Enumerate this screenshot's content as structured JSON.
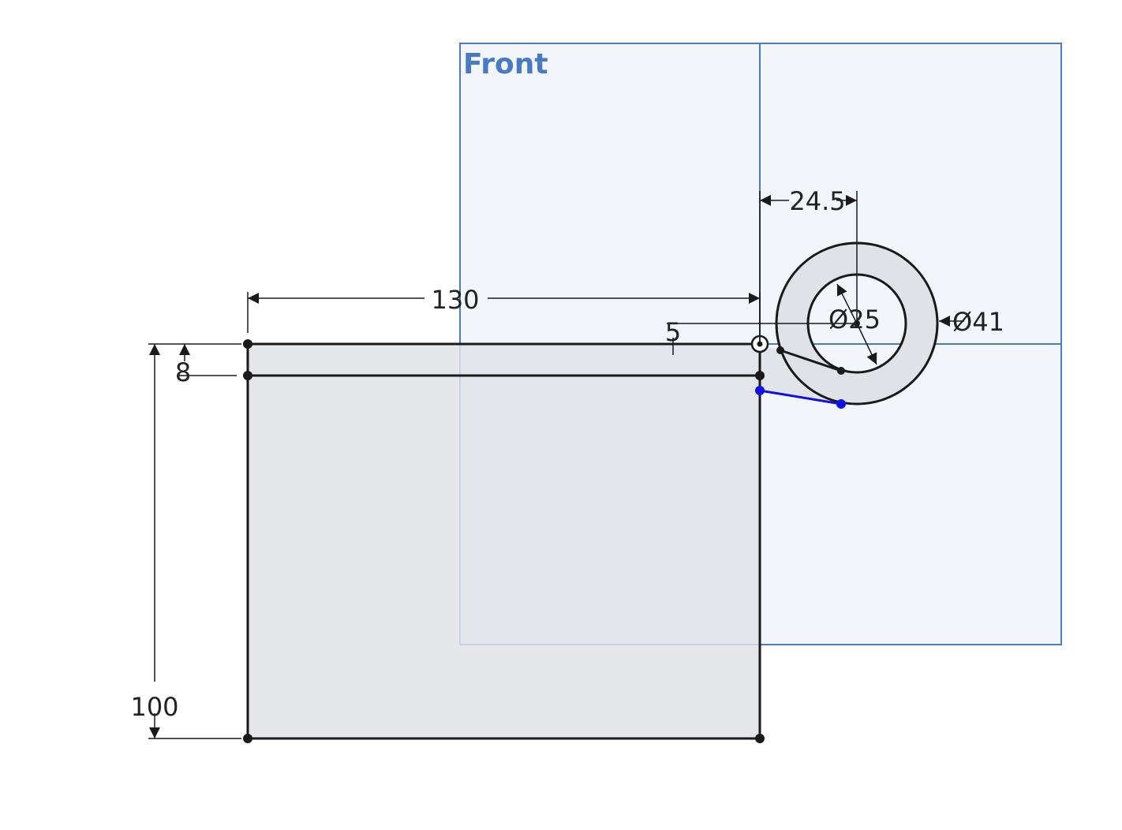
{
  "plane": {
    "label": "Front",
    "color": "#4a7bc0",
    "fill": "#eef3f9"
  },
  "sketch": {
    "line_color": "#1a1a1a",
    "fill_color": "#dfe2e6",
    "selected_color": "#1010e0"
  },
  "dimensions": {
    "width": "130",
    "height": "100",
    "thickness": "8",
    "offset_x": "24.5",
    "offset_y": "5",
    "inner_diameter": "Ø25",
    "outer_diameter": "Ø41"
  }
}
